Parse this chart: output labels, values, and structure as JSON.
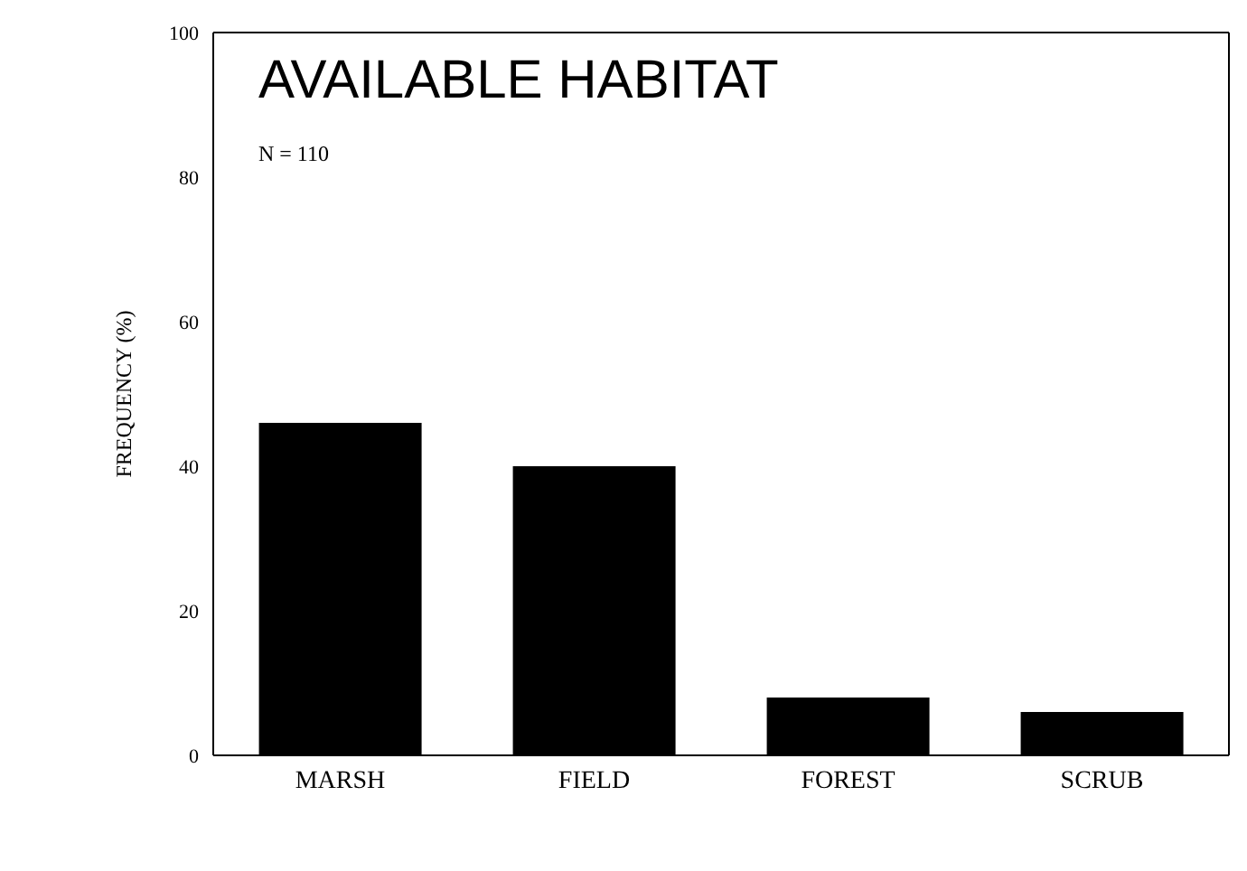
{
  "chart_data": {
    "type": "bar",
    "title": "AVAILABLE HABITAT",
    "ylabel": "FREQUENCY (%)",
    "annotations": [
      "N = 110"
    ],
    "categories": [
      "MARSH",
      "FIELD",
      "FOREST",
      "SCRUB"
    ],
    "values": [
      46,
      40,
      8,
      6
    ],
    "color": "#000000",
    "ylim": [
      0,
      100
    ],
    "yticks": [
      0,
      20,
      40,
      60,
      80,
      100
    ],
    "grid": false,
    "legend": false
  }
}
